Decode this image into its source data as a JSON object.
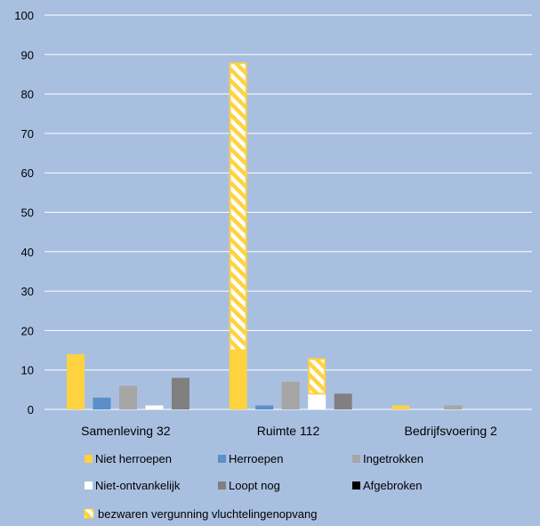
{
  "chart_data": {
    "type": "bar",
    "title": "",
    "xlabel": "",
    "ylabel": "",
    "ylim": [
      0,
      100
    ],
    "yticks": [
      0,
      10,
      20,
      30,
      40,
      50,
      60,
      70,
      80,
      90,
      100
    ],
    "categories": [
      "Samenleving 32",
      "Ruimte 112",
      "Bedrijfsvoering 2"
    ],
    "grid": true,
    "legend_position": "bottom",
    "series": [
      {
        "name": "Niet herroepen",
        "values": [
          14,
          15,
          1
        ],
        "color": "#ffd23f"
      },
      {
        "name": "Herroepen",
        "values": [
          3,
          1,
          0
        ],
        "color": "#5b8fc9"
      },
      {
        "name": "Ingetrokken",
        "values": [
          6,
          7,
          1
        ],
        "color": "#a6a6a6"
      },
      {
        "name": "Niet-ontvankelijk",
        "values": [
          1,
          4,
          0
        ],
        "color": "#ffffff"
      },
      {
        "name": "Loopt nog",
        "values": [
          8,
          4,
          0
        ],
        "color": "#808080"
      },
      {
        "name": "Afgebroken",
        "values": [
          0,
          0,
          0
        ],
        "color": "#000000"
      }
    ],
    "stacked_overlay": {
      "name": "bezwaren vergunning vluchtelingenopvang",
      "pattern": "diagonal-hatch",
      "color": "#ffd23f",
      "on_series": [
        "Niet herroepen",
        "Niet-ontvankelijk"
      ],
      "values": [
        [
          0,
          73,
          0
        ],
        [
          0,
          9,
          0
        ]
      ]
    }
  }
}
